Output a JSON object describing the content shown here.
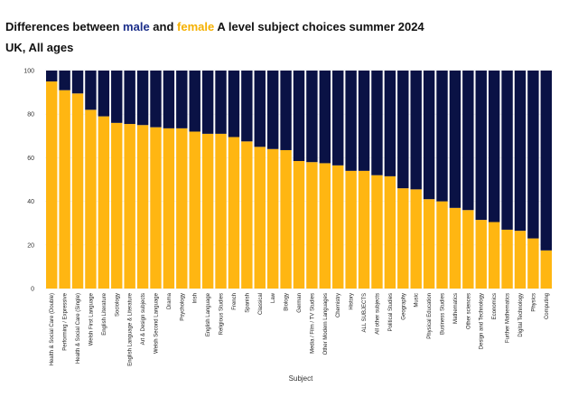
{
  "chart_data": {
    "type": "bar",
    "stacked": true,
    "title_parts": [
      "Differences between ",
      "male",
      " and ",
      "female",
      " A level subject choices summer 2024"
    ],
    "subtitle": "UK, All ages",
    "xlabel": "Subject",
    "ylabel": "",
    "ylim": [
      0,
      100
    ],
    "yticks": [
      "0",
      "20",
      "40",
      "60",
      "80",
      "100"
    ],
    "categories": [
      "Health & Social Care (Double)",
      "Performing / Expressive",
      "Health & Social Care (Single)",
      "Welsh First Language",
      "English Literature",
      "Sociology",
      "English Language & Literature",
      "Art & Design subjects",
      "Welsh Second Language",
      "Drama",
      "Psychology",
      "Irish",
      "English Language",
      "Religious Studies",
      "French",
      "Spanish",
      "Classical",
      "Law",
      "Biology",
      "German",
      "Media / Film / TV Studies",
      "Other Modern Languages",
      "Chemistry",
      "History",
      "ALL SUBJECTS",
      "All other subjects",
      "Political Studies",
      "Geography",
      "Music",
      "Physical Education",
      "Business Studies",
      "Mathematics",
      "Other sciences",
      "Design and Technology",
      "Economics",
      "Further Mathematics",
      "Digital Technology",
      "Physics",
      "Computing"
    ],
    "series": [
      {
        "name": "female",
        "color": "#ffb612",
        "values": [
          95,
          91,
          89.5,
          82,
          79,
          76,
          75.5,
          75,
          74,
          73.5,
          73.5,
          72,
          71,
          71,
          69.5,
          67.5,
          65,
          64,
          63.5,
          58.5,
          58,
          57.5,
          56.5,
          54,
          54,
          52,
          51.5,
          46,
          45.5,
          41,
          40,
          37,
          36,
          31.5,
          30.5,
          27,
          26.5,
          23,
          17.5
        ]
      },
      {
        "name": "male",
        "color": "#0a1245",
        "values": [
          5,
          9,
          10.5,
          18,
          21,
          24,
          24.5,
          25,
          26,
          26.5,
          26.5,
          28,
          29,
          29,
          30.5,
          32.5,
          35,
          36,
          36.5,
          41.5,
          42,
          42.5,
          43.5,
          46,
          46,
          48,
          48.5,
          54,
          54.5,
          59,
          60,
          63,
          64,
          68.5,
          69.5,
          73,
          73.5,
          77,
          82.5
        ]
      }
    ],
    "grid": true,
    "legend": "none"
  }
}
